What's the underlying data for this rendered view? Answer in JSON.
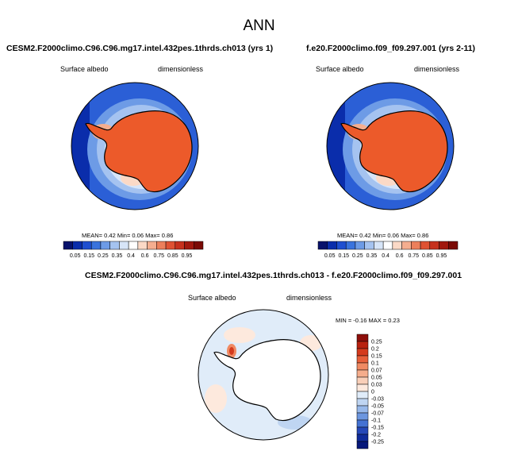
{
  "figure": {
    "title": "ANN"
  },
  "panels": [
    {
      "case_title": "CESM2.F2000climo.C96.C96.mg17.intel.432pes.1thrds.ch013 (yrs 1)",
      "variable": "Surface albedo",
      "units": "dimensionless",
      "stats": {
        "mean_label": "MEAN=",
        "mean": "0.42",
        "min_label": "Min=",
        "min": "0.06",
        "max_label": "Max=",
        "max": "0.86"
      }
    },
    {
      "case_title": "f.e20.F2000climo.f09_f09.297.001 (yrs 2-11)",
      "variable": "Surface albedo",
      "units": "dimensionless",
      "stats": {
        "mean_label": "MEAN=",
        "mean": "0.42",
        "min_label": "Min=",
        "min": "0.06",
        "max_label": "Max=",
        "max": "0.86"
      }
    },
    {
      "case_title": "CESM2.F2000climo.C96.C96.mg17.intel.432pes.1thrds.ch013 - f.e20.F2000climo.f09_f09.297.001",
      "variable": "Surface albedo",
      "units": "dimensionless",
      "stats_text": "MIN = -0.16 MAX = 0.23"
    }
  ],
  "colorbar_abs": {
    "labels": [
      "0.05",
      "0.15",
      "0.25",
      "0.35",
      "0.4",
      "0.6",
      "0.75",
      "0.85",
      "0.95"
    ],
    "colors": [
      "#08126b",
      "#0a2dab",
      "#1f4fd0",
      "#3a73dd",
      "#6d9be6",
      "#a5c3f0",
      "#d7e5f8",
      "#ffffff",
      "#fbd9c6",
      "#f5ae8f",
      "#ec7f5b",
      "#df5233",
      "#c6311d",
      "#a1180e",
      "#7a0a05"
    ]
  },
  "colorbar_diff": {
    "labels": [
      "0.25",
      "0.2",
      "0.15",
      "0.1",
      "0.07",
      "0.05",
      "0.03",
      "0",
      "-0.03",
      "-0.05",
      "-0.07",
      "-0.1",
      "-0.15",
      "-0.2",
      "-0.25"
    ],
    "colors": [
      "#8e0f0b",
      "#b8210f",
      "#d43a1d",
      "#e75f3a",
      "#f08a63",
      "#f5ad8c",
      "#f9cfb8",
      "#fde9dd",
      "#e0ecf9",
      "#bfd5f2",
      "#97b8ea",
      "#6c96df",
      "#4472d3",
      "#2548b8",
      "#0f2b9a",
      "#06187a"
    ]
  }
}
